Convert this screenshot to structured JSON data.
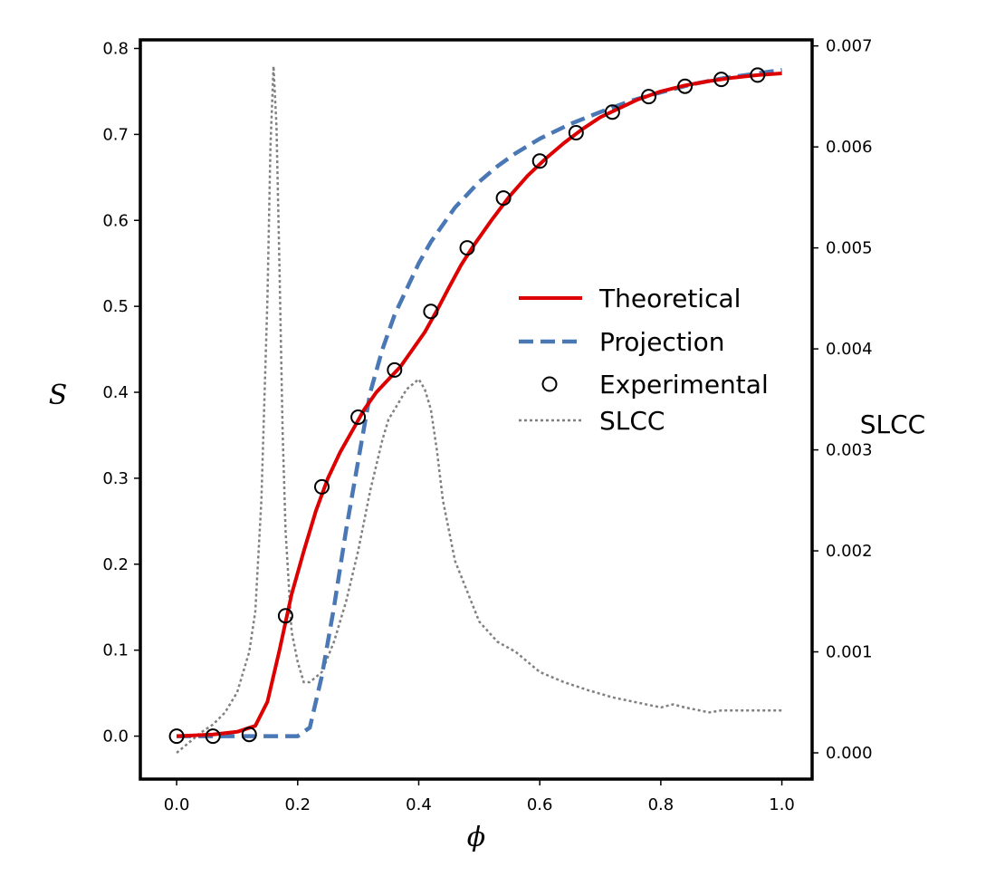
{
  "chart_data": {
    "type": "line",
    "title": "",
    "xlabel": "ϕ",
    "ylabel": "S",
    "y2label": "SLCC",
    "xlim": [
      -0.06,
      1.05
    ],
    "ylim": [
      -0.05,
      0.81
    ],
    "y2lim": [
      -0.00026,
      0.00706
    ],
    "xticks": [
      "0.0",
      "0.2",
      "0.4",
      "0.6",
      "0.8",
      "1.0"
    ],
    "yticks": [
      "0.0",
      "0.1",
      "0.2",
      "0.3",
      "0.4",
      "0.5",
      "0.6",
      "0.7",
      "0.8"
    ],
    "y2ticks": [
      "0.000",
      "0.001",
      "0.002",
      "0.003",
      "0.004",
      "0.005",
      "0.006",
      "0.007"
    ],
    "grid": false,
    "legend_position": "center-right",
    "legend": [
      "Theoretical",
      "Projection",
      "Experimental",
      "SLCC"
    ],
    "colors": {
      "theoretical": "#dd0000",
      "projection": "#4a78b5",
      "experimental": "#000000",
      "slcc": "#808080"
    },
    "series": [
      {
        "name": "Theoretical",
        "axis": "left",
        "style": "solid",
        "x": [
          0.0,
          0.06,
          0.1,
          0.13,
          0.15,
          0.17,
          0.19,
          0.21,
          0.23,
          0.25,
          0.27,
          0.29,
          0.31,
          0.33,
          0.35,
          0.37,
          0.39,
          0.41,
          0.43,
          0.45,
          0.47,
          0.49,
          0.52,
          0.55,
          0.58,
          0.61,
          0.64,
          0.67,
          0.7,
          0.73,
          0.76,
          0.8,
          0.84,
          0.88,
          0.92,
          0.96,
          1.0
        ],
        "y": [
          0.0,
          0.002,
          0.005,
          0.012,
          0.04,
          0.1,
          0.165,
          0.215,
          0.262,
          0.3,
          0.33,
          0.355,
          0.38,
          0.4,
          0.415,
          0.43,
          0.45,
          0.47,
          0.495,
          0.522,
          0.548,
          0.57,
          0.6,
          0.628,
          0.652,
          0.672,
          0.69,
          0.706,
          0.72,
          0.73,
          0.74,
          0.75,
          0.757,
          0.762,
          0.766,
          0.769,
          0.771
        ]
      },
      {
        "name": "Projection",
        "axis": "left",
        "style": "dashed",
        "x": [
          0.0,
          0.1,
          0.2,
          0.22,
          0.24,
          0.26,
          0.28,
          0.3,
          0.32,
          0.34,
          0.36,
          0.38,
          0.4,
          0.42,
          0.44,
          0.46,
          0.48,
          0.5,
          0.53,
          0.56,
          0.6,
          0.65,
          0.7,
          0.75,
          0.8,
          0.85,
          0.9,
          0.95,
          1.0
        ],
        "y": [
          0.0,
          0.0,
          0.0,
          0.01,
          0.07,
          0.15,
          0.24,
          0.32,
          0.4,
          0.45,
          0.49,
          0.52,
          0.55,
          0.575,
          0.595,
          0.615,
          0.63,
          0.645,
          0.663,
          0.678,
          0.695,
          0.712,
          0.726,
          0.739,
          0.749,
          0.758,
          0.765,
          0.77,
          0.775
        ]
      },
      {
        "name": "Experimental",
        "axis": "left",
        "style": "markers",
        "x": [
          0.0,
          0.06,
          0.12,
          0.18,
          0.24,
          0.3,
          0.36,
          0.42,
          0.48,
          0.54,
          0.6,
          0.66,
          0.72,
          0.78,
          0.84,
          0.9,
          0.96
        ],
        "y": [
          0.0,
          0.0,
          0.002,
          0.14,
          0.29,
          0.371,
          0.426,
          0.494,
          0.568,
          0.626,
          0.669,
          0.702,
          0.726,
          0.744,
          0.756,
          0.764,
          0.769
        ]
      },
      {
        "name": "SLCC",
        "axis": "right",
        "style": "dotted",
        "x": [
          0.0,
          0.02,
          0.04,
          0.06,
          0.08,
          0.1,
          0.12,
          0.13,
          0.14,
          0.15,
          0.155,
          0.16,
          0.165,
          0.17,
          0.175,
          0.18,
          0.19,
          0.2,
          0.21,
          0.22,
          0.23,
          0.24,
          0.26,
          0.28,
          0.3,
          0.32,
          0.34,
          0.35,
          0.36,
          0.38,
          0.4,
          0.41,
          0.42,
          0.43,
          0.44,
          0.46,
          0.48,
          0.5,
          0.53,
          0.56,
          0.6,
          0.64,
          0.68,
          0.72,
          0.76,
          0.8,
          0.82,
          0.84,
          0.88,
          0.9,
          0.94,
          1.0
        ],
        "y": [
          0.0,
          0.0001,
          0.0002,
          0.00028,
          0.0004,
          0.0006,
          0.001,
          0.0014,
          0.0025,
          0.0045,
          0.006,
          0.0068,
          0.0062,
          0.0048,
          0.0032,
          0.0022,
          0.0012,
          0.0009,
          0.0007,
          0.0007,
          0.00075,
          0.0008,
          0.0011,
          0.0015,
          0.002,
          0.0026,
          0.0031,
          0.0033,
          0.0034,
          0.0036,
          0.0037,
          0.0036,
          0.0034,
          0.003,
          0.0025,
          0.0019,
          0.0016,
          0.0013,
          0.0011,
          0.001,
          0.0008,
          0.0007,
          0.00062,
          0.00055,
          0.0005,
          0.00045,
          0.00048,
          0.00045,
          0.0004,
          0.00042,
          0.00042,
          0.00042
        ]
      }
    ]
  }
}
